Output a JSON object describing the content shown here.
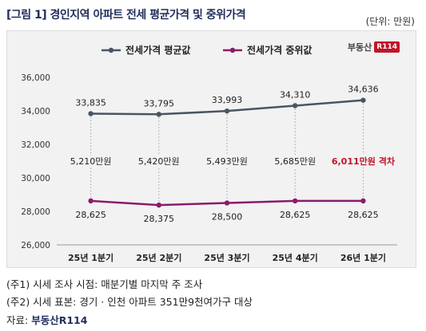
{
  "title": "[그림 1] 경인지역 아파트 전세 평균가격 및 중위가격",
  "unit": "(단위: 만원)",
  "logo": {
    "text": "부동산",
    "mark": "R114"
  },
  "notes": [
    "(주1) 시세 조사 시점: 매분기별 마지막 주 조사",
    "(주2) 시세 표본: 경기 · 인천 아파트 351만9천여가구 대상"
  ],
  "source": {
    "prefix": "자료: ",
    "brand": "부동산R114"
  },
  "colors": {
    "avg": "#4a5563",
    "median": "#8b1a6b",
    "gap_label": "#c0152a",
    "background": "#f2f2f2"
  },
  "chart_data": {
    "type": "line",
    "categories": [
      "25년 1분기",
      "25년 2분기",
      "25년 3분기",
      "25년 4분기",
      "26년 1분기"
    ],
    "ylim": [
      26000,
      36000
    ],
    "yticks": [
      26000,
      28000,
      30000,
      32000,
      34000,
      36000
    ],
    "ytick_labels": [
      "26,000",
      "28,000",
      "30,000",
      "32,000",
      "34,000",
      "36,000"
    ],
    "grid": false,
    "legend": "top-center",
    "series": [
      {
        "name": "전세가격 평균값",
        "values": [
          33835,
          33795,
          33993,
          34310,
          34636
        ],
        "labels": [
          "33,835",
          "33,795",
          "33,993",
          "34,310",
          "34,636"
        ],
        "color": "#4a5563"
      },
      {
        "name": "전세가격 중위값",
        "values": [
          28625,
          28375,
          28500,
          28625,
          28625
        ],
        "labels": [
          "28,625",
          "28,375",
          "28,500",
          "28,625",
          "28,625"
        ],
        "color": "#8b1a6b"
      }
    ],
    "gap_labels": [
      "5,210만원",
      "5,420만원",
      "5,493만원",
      "5,685만원",
      "6,011만원 격차"
    ],
    "highlight_last_gap": true
  }
}
